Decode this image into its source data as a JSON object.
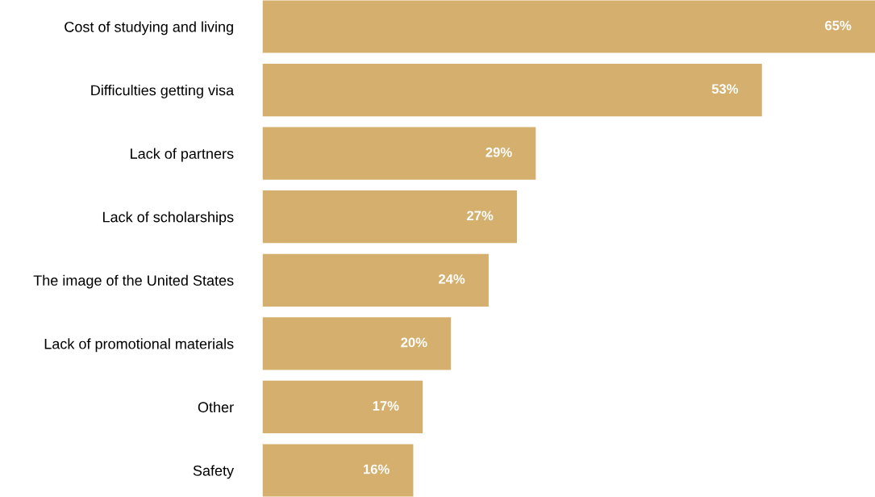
{
  "chart_data": {
    "type": "bar",
    "orientation": "horizontal",
    "categories": [
      "Cost of studying and living",
      "Difficulties getting visa",
      "Lack of partners",
      "Lack of scholarships",
      "The image of the United States",
      "Lack of promotional materials",
      "Other",
      "Safety"
    ],
    "values": [
      65,
      53,
      29,
      27,
      24,
      20,
      17,
      16
    ],
    "value_labels": [
      "65%",
      "53%",
      "29%",
      "27%",
      "24%",
      "20%",
      "17%",
      "16%"
    ],
    "color": "#d4af6e",
    "tick_labels": "y",
    "grid": false,
    "legend": false
  }
}
